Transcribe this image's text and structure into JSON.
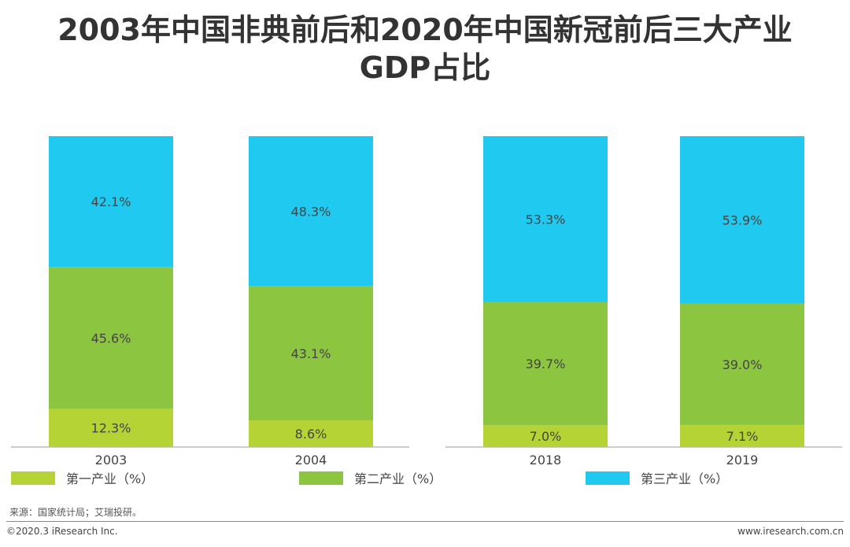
{
  "title": {
    "line1": "2003年中国非典前后和2020年中国新冠前后三大产业",
    "line2": "GDP占比"
  },
  "chart_data": {
    "type": "bar",
    "stacked": true,
    "percent": true,
    "categories": [
      "2003",
      "2004",
      "2018",
      "2019"
    ],
    "series": [
      {
        "name": "第一产业（%）",
        "color": "#b5d334",
        "values": [
          12.3,
          8.6,
          7.0,
          7.1
        ],
        "labels": [
          "12.3%",
          "8.6%",
          "7.0%",
          "7.1%"
        ]
      },
      {
        "name": "第二产业（%）",
        "color": "#8cc540",
        "values": [
          45.6,
          43.1,
          39.7,
          39.0
        ],
        "labels": [
          "45.6%",
          "43.1%",
          "39.7%",
          "39.0%"
        ]
      },
      {
        "name": "第三产业（%）",
        "color": "#1fc9ef",
        "values": [
          42.1,
          48.3,
          53.3,
          53.9
        ],
        "labels": [
          "42.1%",
          "48.3%",
          "53.3%",
          "53.9%"
        ]
      }
    ],
    "ylim": [
      0,
      100
    ],
    "legend": "bottom"
  },
  "footer": {
    "source": "来源：国家统计局；艾瑞投研。",
    "copyright": "©2020.3 iResearch Inc.",
    "website": "www.iresearch.com.cn"
  }
}
